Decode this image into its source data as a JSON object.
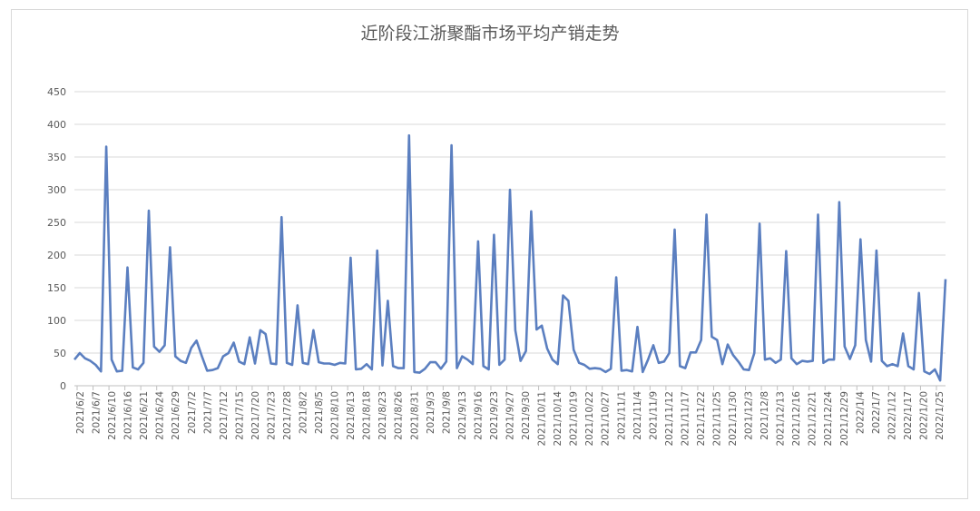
{
  "chart_data": {
    "type": "line",
    "title": "近阶段江浙聚酯市场平均产销走势",
    "xlabel": "",
    "ylabel": "",
    "ylim": [
      0,
      450
    ],
    "yticks": [
      0,
      50,
      100,
      150,
      200,
      250,
      300,
      350,
      400,
      450
    ],
    "grid": true,
    "legend": "none",
    "line_color": "#5b7fc0",
    "x_tick_labels": [
      "2021/6/2",
      "2021/6/7",
      "2021/6/10",
      "2021/6/16",
      "2021/6/21",
      "2021/6/24",
      "2021/6/29",
      "2021/7/2",
      "2021/7/7",
      "2021/7/12",
      "2021/7/15",
      "2021/7/20",
      "2021/7/23",
      "2021/7/28",
      "2021/8/2",
      "2021/8/5",
      "2021/8/10",
      "2021/8/13",
      "2021/8/18",
      "2021/8/23",
      "2021/8/26",
      "2021/8/31",
      "2021/9/3",
      "2021/9/8",
      "2021/9/13",
      "2021/9/16",
      "2021/9/23",
      "2021/9/27",
      "2021/9/30",
      "2021/10/11",
      "2021/10/14",
      "2021/10/19",
      "2021/10/22",
      "2021/10/27",
      "2021/11/1",
      "2021/11/4",
      "2021/11/9",
      "2021/11/12",
      "2021/11/17",
      "2021/11/22",
      "2021/11/25",
      "2021/11/30",
      "2021/12/3",
      "2021/12/8",
      "2021/12/13",
      "2021/12/16",
      "2021/12/21",
      "2021/12/24",
      "2021/12/29",
      "2022/1/4",
      "2022/1/7",
      "2022/1/12",
      "2022/1/17",
      "2022/1/20",
      "2022/1/25"
    ],
    "values": [
      40,
      50,
      42,
      38,
      32,
      22,
      366,
      40,
      22,
      23,
      181,
      28,
      25,
      35,
      268,
      60,
      52,
      62,
      212,
      45,
      38,
      35,
      58,
      69,
      45,
      23,
      24,
      27,
      45,
      50,
      66,
      37,
      33,
      74,
      34,
      85,
      79,
      34,
      33,
      258,
      35,
      32,
      123,
      35,
      33,
      85,
      36,
      34,
      34,
      32,
      35,
      34,
      196,
      25,
      26,
      33,
      25,
      207,
      31,
      130,
      30,
      27,
      27,
      383,
      21,
      20,
      26,
      36,
      36,
      26,
      37,
      368,
      27,
      45,
      40,
      33,
      221,
      30,
      25,
      231,
      32,
      40,
      300,
      85,
      38,
      53,
      267,
      86,
      92,
      57,
      40,
      33,
      138,
      130,
      55,
      35,
      32,
      26,
      27,
      26,
      21,
      26,
      166,
      23,
      24,
      22,
      90,
      21,
      40,
      62,
      35,
      37,
      50,
      239,
      30,
      27,
      51,
      51,
      70,
      262,
      75,
      70,
      33,
      63,
      47,
      37,
      25,
      24,
      50,
      248,
      40,
      42,
      35,
      40,
      206,
      42,
      33,
      38,
      37,
      38,
      262,
      35,
      40,
      40,
      281,
      60,
      41,
      62,
      224,
      70,
      37,
      207,
      38,
      30,
      33,
      30,
      80,
      30,
      25,
      142,
      22,
      18,
      25,
      8,
      163
    ]
  }
}
